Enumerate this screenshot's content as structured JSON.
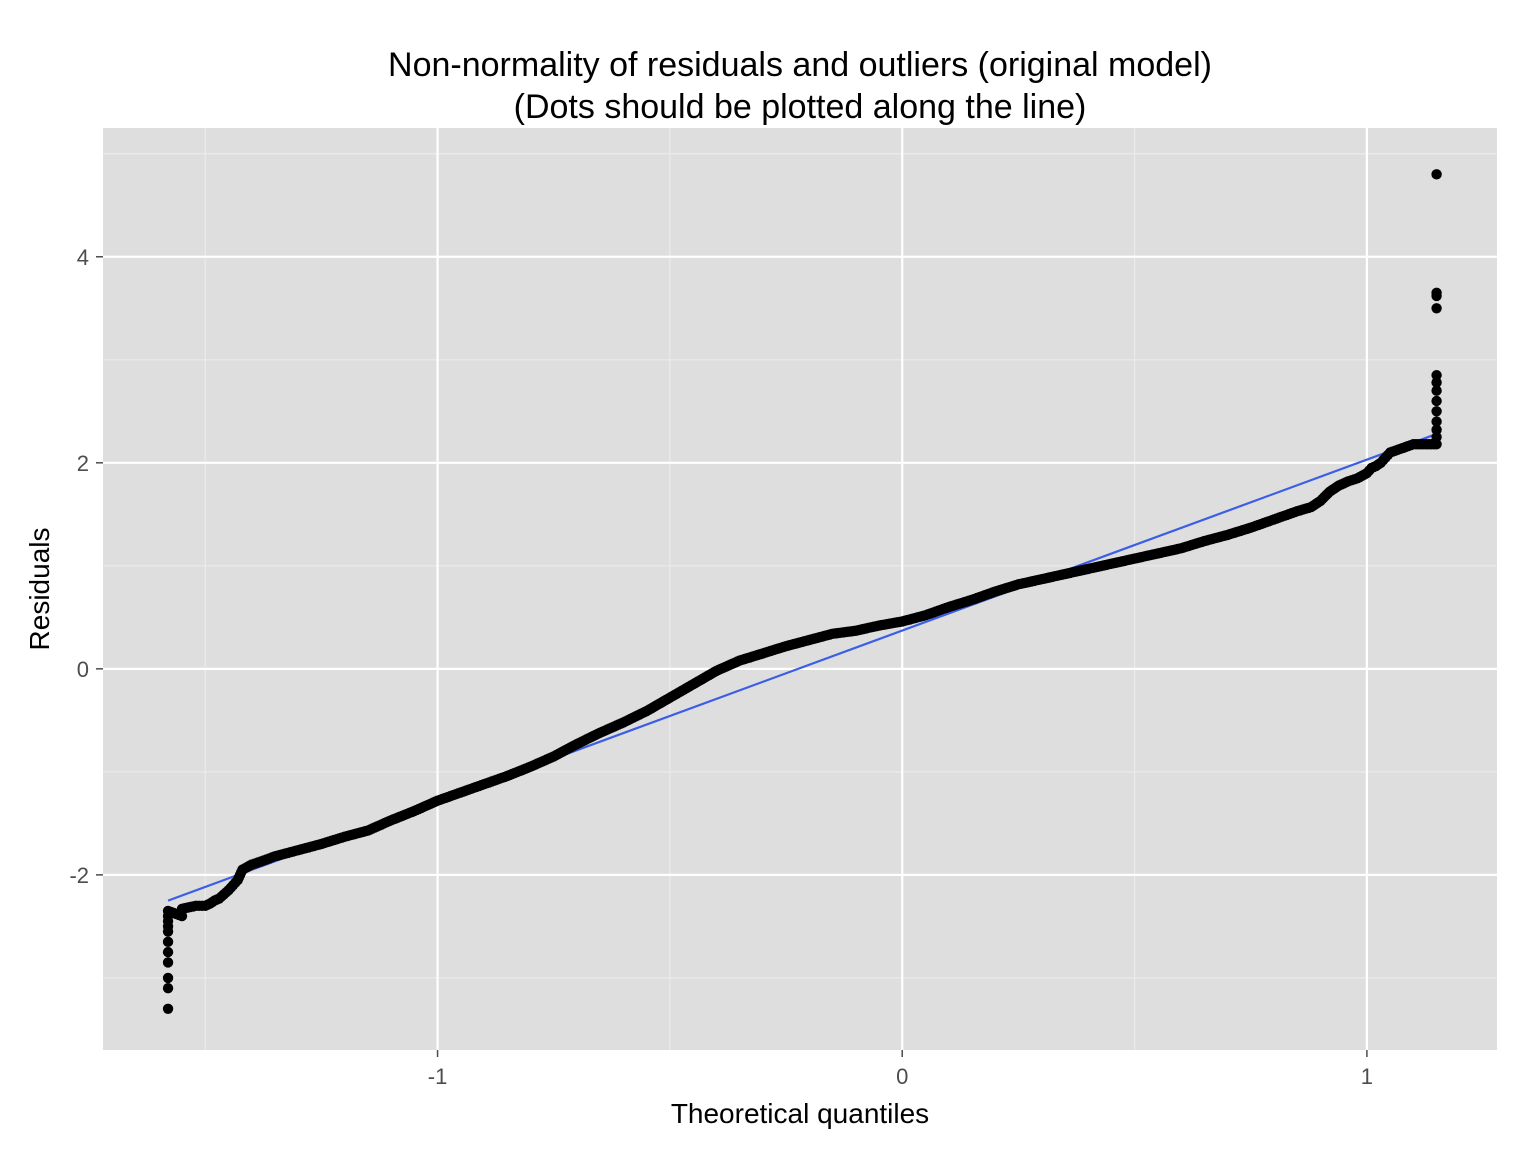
{
  "chart_data": {
    "type": "scatter",
    "title": "Non-normality of residuals and outliers (original model)",
    "subtitle": "(Dots should be plotted along the line)",
    "xlabel": "Theoretical quantiles",
    "ylabel": "Residuals",
    "xlim": [
      -1.72,
      1.28
    ],
    "ylim": [
      -3.7,
      5.25
    ],
    "x_ticks": [
      -1,
      0,
      1
    ],
    "x_tick_labels": [
      "-1",
      "0",
      "1"
    ],
    "y_ticks": [
      -2,
      0,
      2,
      4
    ],
    "y_tick_labels": [
      "-2",
      "0",
      "2",
      "4"
    ],
    "grid": true,
    "legend": "none",
    "colors": {
      "panel_background": "#dedede",
      "grid_major": "#ffffff",
      "grid_minor": "#ebebeb",
      "points": "#000000",
      "reference_line": "#3c5ee6",
      "tick_text": "#4d4d4d"
    },
    "reference_line": {
      "x": [
        -1.58,
        1.15
      ],
      "y": [
        -2.25,
        2.28
      ]
    },
    "series": [
      {
        "type": "points",
        "x": [
          -1.58,
          -1.58,
          -1.58,
          -1.58,
          -1.58,
          -1.58,
          -1.58,
          -1.58,
          -1.58,
          -1.58,
          -1.58,
          -1.55,
          -1.55,
          -1.52,
          -1.5,
          -1.49,
          -1.48,
          -1.47,
          -1.45,
          -1.44,
          -1.43,
          -1.42,
          -1.4,
          -1.38,
          -1.35,
          -1.3,
          -1.25,
          -1.2,
          -1.15,
          -1.1,
          -1.05,
          -1.0,
          -0.95,
          -0.9,
          -0.85,
          -0.8,
          -0.75,
          -0.7,
          -0.65,
          -0.6,
          -0.55,
          -0.5,
          -0.45,
          -0.4,
          -0.35,
          -0.3,
          -0.25,
          -0.2,
          -0.15,
          -0.1,
          -0.05,
          0.0,
          0.05,
          0.1,
          0.15,
          0.2,
          0.25,
          0.3,
          0.35,
          0.4,
          0.45,
          0.5,
          0.55,
          0.6,
          0.65,
          0.7,
          0.75,
          0.8,
          0.85,
          0.88,
          0.9,
          0.92,
          0.94,
          0.96,
          0.98,
          1.0,
          1.01,
          1.02,
          1.03,
          1.04,
          1.05,
          1.1,
          1.15,
          1.15,
          1.15,
          1.15,
          1.15,
          1.15,
          1.15,
          1.15,
          1.15,
          1.15,
          1.15,
          1.15,
          1.15
        ],
        "y": [
          -3.3,
          -3.1,
          -3.0,
          -2.85,
          -2.75,
          -2.65,
          -2.55,
          -2.5,
          -2.45,
          -2.4,
          -2.35,
          -2.4,
          -2.33,
          -2.3,
          -2.3,
          -2.28,
          -2.25,
          -2.23,
          -2.15,
          -2.1,
          -2.05,
          -1.95,
          -1.9,
          -1.87,
          -1.82,
          -1.76,
          -1.7,
          -1.63,
          -1.57,
          -1.47,
          -1.38,
          -1.28,
          -1.2,
          -1.12,
          -1.04,
          -0.95,
          -0.85,
          -0.73,
          -0.62,
          -0.52,
          -0.41,
          -0.28,
          -0.15,
          -0.02,
          0.08,
          0.15,
          0.22,
          0.28,
          0.34,
          0.37,
          0.42,
          0.46,
          0.52,
          0.6,
          0.67,
          0.75,
          0.82,
          0.87,
          0.92,
          0.97,
          1.02,
          1.07,
          1.12,
          1.17,
          1.24,
          1.3,
          1.37,
          1.45,
          1.53,
          1.57,
          1.63,
          1.72,
          1.78,
          1.82,
          1.85,
          1.9,
          1.95,
          1.97,
          2.0,
          2.05,
          2.1,
          2.18,
          2.18,
          2.25,
          2.32,
          2.4,
          2.5,
          2.6,
          2.7,
          2.78,
          2.85,
          3.5,
          3.62,
          3.65,
          4.8
        ]
      }
    ]
  }
}
